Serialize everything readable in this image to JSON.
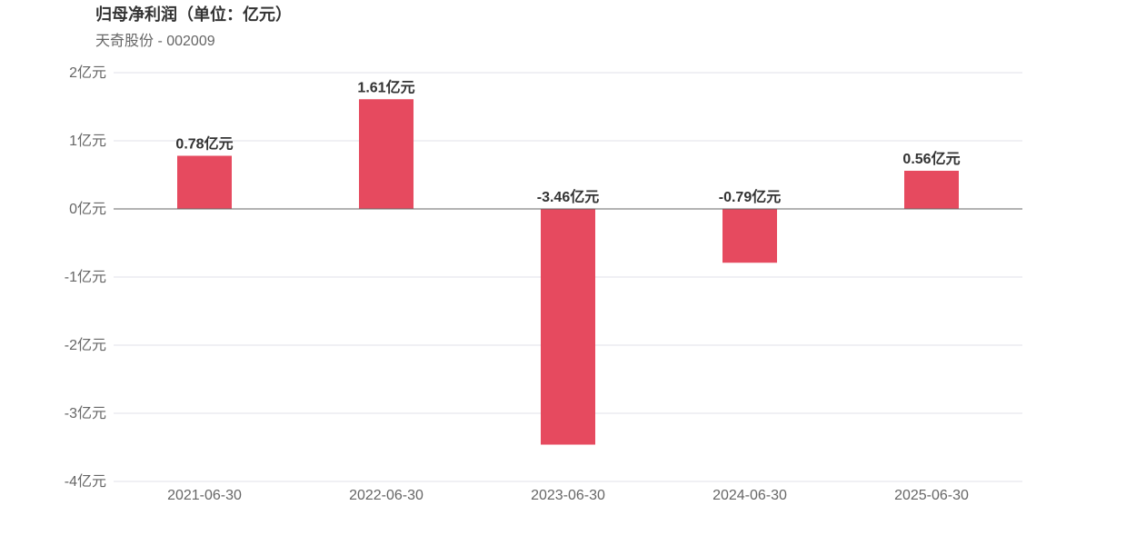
{
  "chart_data": {
    "type": "bar",
    "title": "归母净利润（单位：亿元）",
    "subtitle": "天奇股份 - 002009",
    "categories": [
      "2021-06-30",
      "2022-06-30",
      "2023-06-30",
      "2024-06-30",
      "2025-06-30"
    ],
    "values": [
      0.78,
      1.61,
      -3.46,
      -0.79,
      0.56
    ],
    "data_labels": [
      "0.78亿元",
      "1.61亿元",
      "-3.46亿元",
      "-0.79亿元",
      "0.56亿元"
    ],
    "ylim": [
      -4,
      2
    ],
    "yticks": [
      2,
      1,
      0,
      -1,
      -2,
      -3,
      -4
    ],
    "ytick_labels": [
      "2亿元",
      "1亿元",
      "0亿元",
      "-1亿元",
      "-2亿元",
      "-3亿元",
      "-4亿元"
    ],
    "xlabel": "",
    "ylabel": "",
    "grid": true,
    "legend": "none",
    "colors": {
      "bar": "#e64a5f",
      "grid": "#e0e0e8",
      "zero_line": "#666666"
    }
  }
}
